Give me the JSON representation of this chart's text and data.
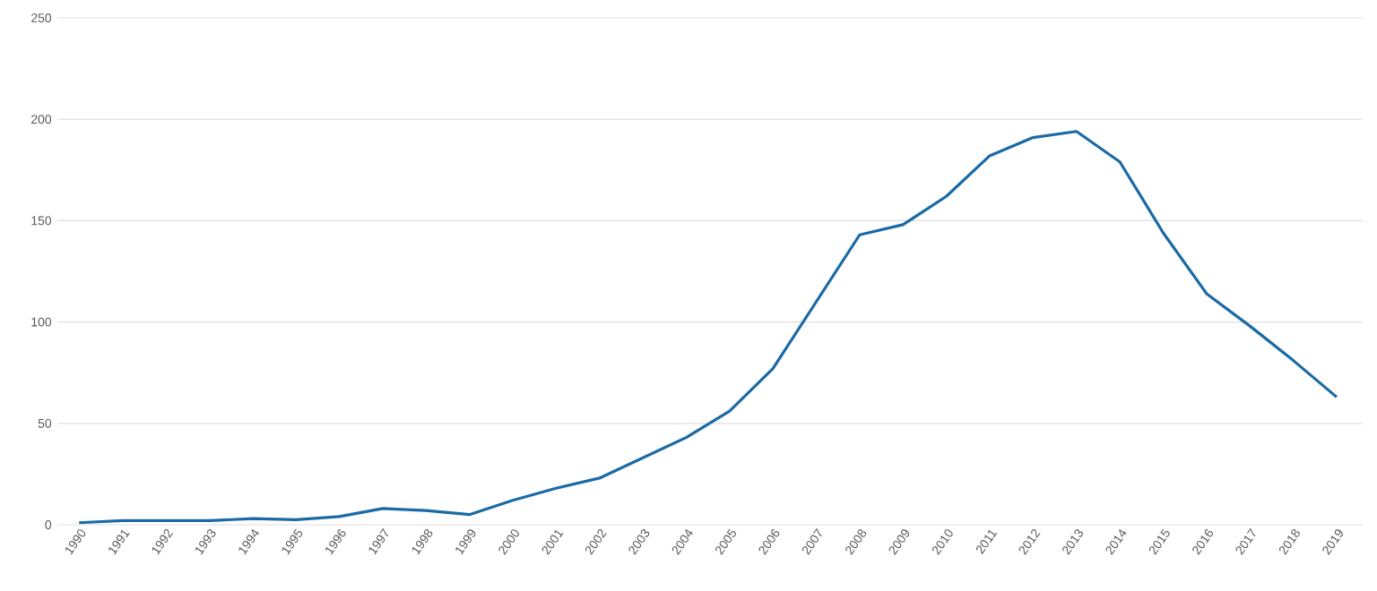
{
  "chart_data": {
    "type": "line",
    "categories": [
      "1990",
      "1991",
      "1992",
      "1993",
      "1994",
      "1995",
      "1996",
      "1997",
      "1998",
      "1999",
      "2000",
      "2001",
      "2002",
      "2003",
      "2004",
      "2005",
      "2006",
      "2007",
      "2008",
      "2009",
      "2010",
      "2011",
      "2012",
      "2013",
      "2014",
      "2015",
      "2016",
      "2017",
      "2018",
      "2019"
    ],
    "series": [
      {
        "color": "#1a6aa6",
        "values": [
          1,
          2,
          2,
          2,
          3,
          2.5,
          4,
          8,
          7,
          5,
          12,
          18,
          23,
          33,
          43,
          56,
          77,
          110,
          143,
          148,
          162,
          182,
          191,
          194,
          179,
          144,
          114,
          98,
          81,
          63
        ]
      }
    ],
    "ylim": [
      0,
      250
    ],
    "yticks": [
      0,
      50,
      100,
      150,
      200,
      250
    ],
    "grid": "y",
    "marker": "none",
    "line_style": "solid"
  }
}
